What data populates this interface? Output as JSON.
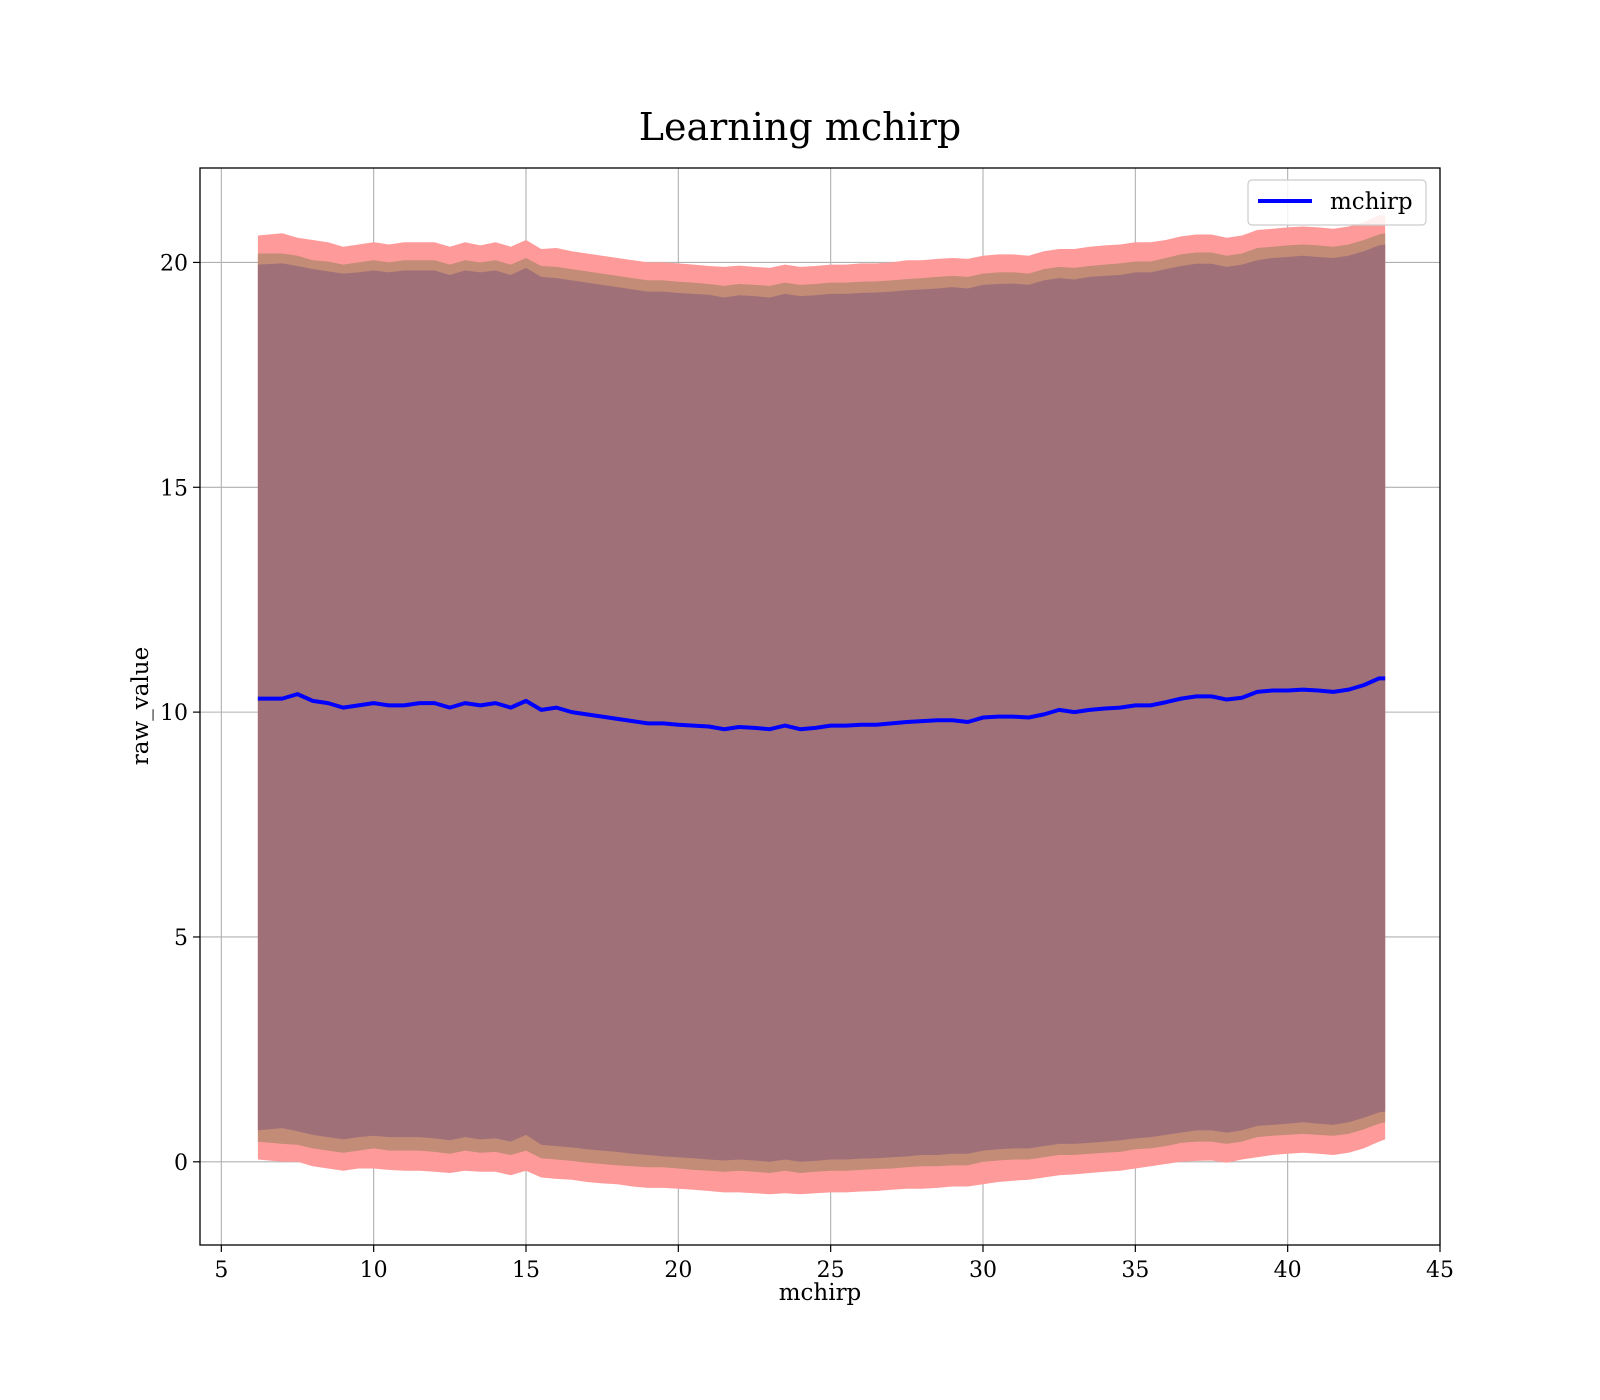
{
  "chart_data": {
    "type": "line",
    "title": "Learning mchirp",
    "xlabel": "mchirp",
    "ylabel": "raw_value",
    "xlim": [
      4.3,
      45
    ],
    "ylim": [
      -1.85,
      22.1
    ],
    "xticks": [
      5,
      10,
      15,
      20,
      25,
      30,
      35,
      40,
      45
    ],
    "yticks": [
      0,
      5,
      10,
      15,
      20
    ],
    "grid": true,
    "legend_position": "top-right",
    "colors": {
      "line": "#0000ff",
      "outer_band": "#ff9a9a",
      "middle_band": "#c28c77",
      "inner_band": "#a07078",
      "grid": "#b0b0b0"
    },
    "x": [
      6.2,
      7,
      7.5,
      8,
      8.5,
      9,
      9.5,
      10,
      10.5,
      11,
      11.5,
      12,
      12.5,
      13,
      13.5,
      14,
      14.5,
      15,
      15.5,
      16,
      16.5,
      17,
      17.5,
      18,
      18.5,
      19,
      19.5,
      20,
      20.5,
      21,
      21.5,
      22,
      22.5,
      23,
      23.5,
      24,
      24.5,
      25,
      25.5,
      26,
      26.5,
      27,
      27.5,
      28,
      28.5,
      29,
      29.5,
      30,
      30.5,
      31,
      31.5,
      32,
      32.5,
      33,
      33.5,
      34,
      34.5,
      35,
      35.5,
      36,
      36.5,
      37,
      37.5,
      38,
      38.5,
      39,
      39.5,
      40,
      40.5,
      41,
      41.5,
      42,
      42.5,
      43,
      43.2
    ],
    "series": [
      {
        "name": "mchirp",
        "role": "mean",
        "values": [
          10.3,
          10.3,
          10.4,
          10.25,
          10.2,
          10.1,
          10.15,
          10.2,
          10.15,
          10.15,
          10.2,
          10.2,
          10.1,
          10.2,
          10.15,
          10.2,
          10.1,
          10.25,
          10.05,
          10.1,
          10.0,
          9.95,
          9.9,
          9.85,
          9.8,
          9.75,
          9.75,
          9.72,
          9.7,
          9.68,
          9.62,
          9.67,
          9.65,
          9.62,
          9.7,
          9.62,
          9.65,
          9.7,
          9.7,
          9.72,
          9.72,
          9.75,
          9.78,
          9.8,
          9.82,
          9.82,
          9.78,
          9.88,
          9.9,
          9.9,
          9.88,
          9.95,
          10.05,
          10.0,
          10.05,
          10.08,
          10.1,
          10.15,
          10.15,
          10.22,
          10.3,
          10.35,
          10.35,
          10.28,
          10.32,
          10.45,
          10.48,
          10.48,
          10.5,
          10.48,
          10.45,
          10.5,
          10.6,
          10.75,
          10.75
        ]
      }
    ],
    "bands": [
      {
        "role": "outer",
        "lower": [
          0.05,
          0.0,
          0.0,
          -0.1,
          -0.15,
          -0.2,
          -0.15,
          -0.15,
          -0.18,
          -0.2,
          -0.2,
          -0.22,
          -0.25,
          -0.2,
          -0.22,
          -0.22,
          -0.3,
          -0.2,
          -0.35,
          -0.38,
          -0.4,
          -0.45,
          -0.48,
          -0.5,
          -0.55,
          -0.58,
          -0.58,
          -0.6,
          -0.62,
          -0.65,
          -0.68,
          -0.68,
          -0.7,
          -0.72,
          -0.7,
          -0.72,
          -0.7,
          -0.68,
          -0.68,
          -0.66,
          -0.65,
          -0.62,
          -0.6,
          -0.6,
          -0.58,
          -0.55,
          -0.55,
          -0.5,
          -0.45,
          -0.42,
          -0.4,
          -0.35,
          -0.3,
          -0.28,
          -0.25,
          -0.22,
          -0.2,
          -0.15,
          -0.1,
          -0.05,
          0.0,
          0.02,
          0.03,
          -0.02,
          0.05,
          0.1,
          0.15,
          0.18,
          0.2,
          0.18,
          0.15,
          0.2,
          0.3,
          0.45,
          0.5
        ],
        "upper": [
          20.6,
          20.65,
          20.55,
          20.5,
          20.45,
          20.35,
          20.4,
          20.45,
          20.4,
          20.45,
          20.45,
          20.45,
          20.35,
          20.45,
          20.38,
          20.45,
          20.35,
          20.5,
          20.3,
          20.32,
          20.25,
          20.2,
          20.15,
          20.1,
          20.05,
          20.0,
          20.0,
          19.98,
          19.95,
          19.92,
          19.9,
          19.93,
          19.9,
          19.88,
          19.95,
          19.9,
          19.92,
          19.95,
          19.95,
          19.98,
          19.98,
          20.0,
          20.05,
          20.05,
          20.08,
          20.1,
          20.08,
          20.15,
          20.18,
          20.18,
          20.15,
          20.25,
          20.3,
          20.3,
          20.35,
          20.38,
          20.4,
          20.45,
          20.45,
          20.5,
          20.58,
          20.62,
          20.62,
          20.55,
          20.6,
          20.72,
          20.75,
          20.78,
          20.8,
          20.78,
          20.75,
          20.8,
          20.9,
          21.05,
          21.05
        ]
      },
      {
        "role": "middle",
        "lower": [
          0.45,
          0.4,
          0.38,
          0.3,
          0.25,
          0.2,
          0.25,
          0.3,
          0.25,
          0.25,
          0.25,
          0.22,
          0.18,
          0.25,
          0.2,
          0.22,
          0.15,
          0.25,
          0.08,
          0.05,
          0.02,
          -0.02,
          -0.05,
          -0.08,
          -0.1,
          -0.12,
          -0.12,
          -0.15,
          -0.18,
          -0.2,
          -0.22,
          -0.2,
          -0.22,
          -0.25,
          -0.2,
          -0.25,
          -0.22,
          -0.2,
          -0.2,
          -0.18,
          -0.16,
          -0.15,
          -0.12,
          -0.1,
          -0.1,
          -0.08,
          -0.08,
          0.0,
          0.03,
          0.05,
          0.05,
          0.1,
          0.15,
          0.15,
          0.18,
          0.2,
          0.22,
          0.28,
          0.3,
          0.35,
          0.42,
          0.45,
          0.45,
          0.4,
          0.45,
          0.55,
          0.58,
          0.6,
          0.62,
          0.6,
          0.58,
          0.62,
          0.72,
          0.85,
          0.88
        ],
        "upper": [
          20.2,
          20.2,
          20.15,
          20.05,
          20.02,
          19.95,
          20.0,
          20.05,
          20.0,
          20.05,
          20.05,
          20.05,
          19.95,
          20.05,
          20.0,
          20.05,
          19.95,
          20.1,
          19.92,
          19.9,
          19.85,
          19.8,
          19.75,
          19.7,
          19.65,
          19.6,
          19.6,
          19.57,
          19.55,
          19.52,
          19.48,
          19.52,
          19.5,
          19.48,
          19.55,
          19.5,
          19.52,
          19.55,
          19.55,
          19.57,
          19.58,
          19.6,
          19.63,
          19.65,
          19.68,
          19.7,
          19.68,
          19.75,
          19.78,
          19.78,
          19.75,
          19.85,
          19.9,
          19.88,
          19.92,
          19.95,
          19.98,
          20.02,
          20.02,
          20.1,
          20.18,
          20.22,
          20.22,
          20.15,
          20.2,
          20.32,
          20.35,
          20.38,
          20.4,
          20.38,
          20.35,
          20.4,
          20.5,
          20.62,
          20.65
        ]
      },
      {
        "role": "inner",
        "lower": [
          0.7,
          0.75,
          0.68,
          0.6,
          0.55,
          0.5,
          0.55,
          0.58,
          0.55,
          0.55,
          0.55,
          0.52,
          0.48,
          0.55,
          0.5,
          0.52,
          0.45,
          0.6,
          0.38,
          0.35,
          0.32,
          0.28,
          0.25,
          0.22,
          0.18,
          0.15,
          0.12,
          0.1,
          0.08,
          0.05,
          0.03,
          0.05,
          0.03,
          0.0,
          0.05,
          0.0,
          0.02,
          0.05,
          0.05,
          0.07,
          0.08,
          0.1,
          0.12,
          0.15,
          0.15,
          0.18,
          0.18,
          0.25,
          0.28,
          0.3,
          0.3,
          0.35,
          0.4,
          0.4,
          0.42,
          0.45,
          0.48,
          0.52,
          0.55,
          0.6,
          0.65,
          0.7,
          0.7,
          0.65,
          0.7,
          0.8,
          0.82,
          0.85,
          0.88,
          0.85,
          0.82,
          0.88,
          0.98,
          1.1,
          1.12
        ],
        "upper": [
          19.95,
          19.98,
          19.92,
          19.85,
          19.8,
          19.75,
          19.78,
          19.82,
          19.78,
          19.82,
          19.82,
          19.82,
          19.72,
          19.82,
          19.78,
          19.82,
          19.72,
          19.88,
          19.68,
          19.65,
          19.6,
          19.55,
          19.5,
          19.45,
          19.4,
          19.35,
          19.35,
          19.32,
          19.3,
          19.28,
          19.22,
          19.27,
          19.25,
          19.22,
          19.3,
          19.25,
          19.27,
          19.3,
          19.3,
          19.32,
          19.33,
          19.35,
          19.38,
          19.4,
          19.42,
          19.45,
          19.42,
          19.5,
          19.52,
          19.53,
          19.5,
          19.6,
          19.65,
          19.62,
          19.68,
          19.7,
          19.72,
          19.78,
          19.78,
          19.85,
          19.92,
          19.97,
          19.97,
          19.9,
          19.95,
          20.05,
          20.1,
          20.12,
          20.15,
          20.12,
          20.1,
          20.15,
          20.25,
          20.38,
          20.4
        ]
      }
    ]
  }
}
